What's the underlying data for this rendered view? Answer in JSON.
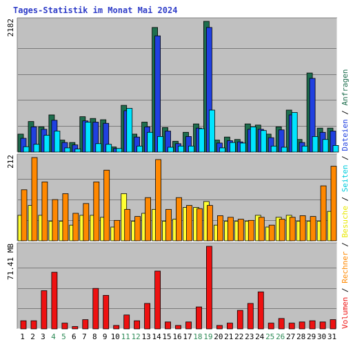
{
  "chart_data": {
    "type": "bar",
    "title": "Tages-Statistik im Monat Mai 2024",
    "x": [
      "1",
      "2",
      "3",
      "4",
      "5",
      "6",
      "7",
      "8",
      "9",
      "10",
      "11",
      "12",
      "13",
      "14",
      "15",
      "16",
      "17",
      "18",
      "19",
      "20",
      "21",
      "22",
      "23",
      "24",
      "25",
      "26",
      "27",
      "28",
      "29",
      "30",
      "31"
    ],
    "weekend_days": [
      "4",
      "5",
      "11",
      "12",
      "18",
      "19",
      "25",
      "26"
    ],
    "colors": {
      "background": "#ffffff",
      "plot_bg": "#c0c0c0",
      "grid": "#7a7a7a",
      "title": "#2e3cc8",
      "weekday_label": "#000000",
      "weekend_label": "#2e8b57"
    },
    "panels": [
      {
        "name": "requests",
        "ymax_label": "2182",
        "ymax": 2182,
        "series": [
          {
            "name": "Anfragen",
            "color": "#1e6e4e",
            "values": [
              300,
              510,
              420,
              620,
              200,
              160,
              590,
              560,
              540,
              85,
              780,
              300,
              500,
              2080,
              410,
              180,
              330,
              470,
              2182,
              200,
              250,
              210,
              470,
              450,
              300,
              420,
              700,
              210,
              1320,
              400,
              400
            ]
          },
          {
            "name": "Dateien",
            "color": "#2040e0",
            "values": [
              230,
              420,
              380,
              530,
              160,
              120,
              520,
              500,
              480,
              60,
              690,
              250,
              420,
              1940,
              350,
              140,
              260,
              400,
              2080,
              150,
              190,
              170,
              380,
              380,
              240,
              370,
              620,
              160,
              1230,
              330,
              350
            ]
          },
          {
            "name": "Seiten",
            "color": "#00e5ff",
            "values": [
              90,
              130,
              280,
              350,
              70,
              50,
              500,
              140,
              130,
              60,
              730,
              100,
              330,
              260,
              80,
              100,
              100,
              390,
              700,
              70,
              160,
              150,
              420,
              360,
              100,
              80,
              660,
              100,
              260,
              210,
              110
            ]
          }
        ]
      },
      {
        "name": "visits",
        "ymax_label": "212",
        "ymax": 212,
        "series": [
          {
            "name": "Besuche",
            "color": "#ffff33",
            "values": [
              65,
              90,
              65,
              50,
              50,
              40,
              65,
              65,
              60,
              35,
              120,
              50,
              70,
              80,
              50,
              55,
              85,
              85,
              100,
              40,
              50,
              50,
              50,
              65,
              35,
              60,
              65,
              50,
              50,
              50,
              75
            ]
          },
          {
            "name": "Rechner",
            "color": "#ff8800",
            "values": [
              130,
              212,
              150,
              105,
              120,
              70,
              95,
              150,
              180,
              52,
              80,
              62,
              110,
              207,
              80,
              110,
              90,
              82,
              90,
              64,
              60,
              55,
              52,
              60,
              40,
              55,
              60,
              64,
              62,
              140,
              190
            ]
          }
        ]
      },
      {
        "name": "volume",
        "ymax_label": "71.41 MB",
        "ymax": 71.41,
        "series": [
          {
            "name": "Volumen",
            "color": "#ee1111",
            "values": [
              7,
              7,
              33,
              49,
              5,
              2,
              8,
              35,
              29,
              3,
              12,
              7,
              22,
              50,
              6,
              3,
              6,
              19,
              71.41,
              3,
              5,
              16,
              22,
              32,
              5,
              9,
              5,
              6,
              7,
              6,
              8
            ]
          }
        ]
      }
    ],
    "right_axis_labels": [
      {
        "text": "Anfragen",
        "color": "#1e6e4e"
      },
      {
        "text": "Dateien",
        "color": "#2040e0"
      },
      {
        "text": "Seiten",
        "color": "#00ccdd"
      },
      {
        "text": "Besuche",
        "color": "#e8e800"
      },
      {
        "text": "Rechner",
        "color": "#ff8800"
      },
      {
        "text": "Volumen",
        "color": "#ee1111"
      }
    ],
    "right_axis_separator": " / "
  }
}
